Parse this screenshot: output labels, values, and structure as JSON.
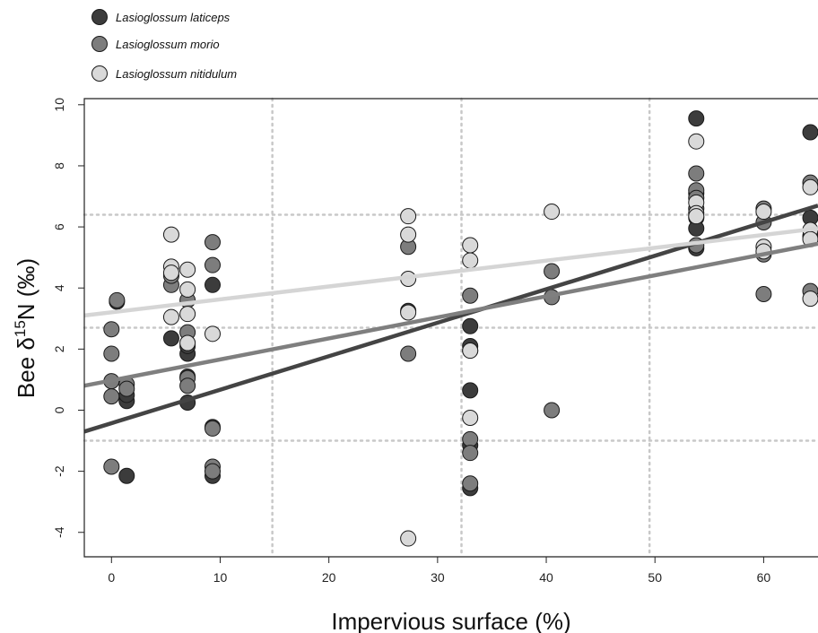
{
  "chart_data": {
    "type": "scatter",
    "xlabel": "Impervious surface (%)",
    "ylabel_main": "Bee δ",
    "ylabel_sup": "15",
    "ylabel_rest": "N (‰)",
    "xlim": [
      -2.5,
      65
    ],
    "ylim": [
      -4.8,
      10.2
    ],
    "x_ticks": [
      0,
      10,
      20,
      30,
      40,
      50,
      60
    ],
    "x_tick_labels": [
      "0",
      "10",
      "20",
      "30",
      "40",
      "50",
      "60"
    ],
    "y_ticks": [
      -4,
      -2,
      0,
      2,
      4,
      6,
      8,
      10
    ],
    "y_tick_labels": [
      "-4",
      "-2",
      "0",
      "2",
      "4",
      "6",
      "8",
      "10"
    ],
    "grid": "dotted reference lines",
    "ref_vlines": [
      14.8,
      32.2,
      49.5
    ],
    "ref_hlines": [
      -1.0,
      2.7,
      6.4
    ],
    "legend_position": "top-left",
    "series": [
      {
        "name": "Lasioglossum laticeps",
        "color": "#3c3c3c",
        "line_color": "#444444",
        "trend": [
          [
            -2.5,
            -0.7
          ],
          [
            65,
            6.7
          ]
        ],
        "points": [
          [
            0.5,
            3.55
          ],
          [
            1.4,
            0.3
          ],
          [
            1.4,
            0.5
          ],
          [
            1.4,
            -2.15
          ],
          [
            5.5,
            2.35
          ],
          [
            7.0,
            1.85
          ],
          [
            7.0,
            1.1
          ],
          [
            7.0,
            0.25
          ],
          [
            7.0,
            2.1
          ],
          [
            9.3,
            4.1
          ],
          [
            9.3,
            -0.55
          ],
          [
            9.3,
            -2.15
          ],
          [
            27.3,
            3.25
          ],
          [
            33.0,
            2.75
          ],
          [
            33.0,
            2.1
          ],
          [
            33.0,
            1.95
          ],
          [
            33.0,
            0.65
          ],
          [
            33.0,
            -2.55
          ],
          [
            33.0,
            -1.15
          ],
          [
            53.8,
            9.55
          ],
          [
            53.8,
            7.1
          ],
          [
            53.8,
            6.3
          ],
          [
            53.8,
            5.95
          ],
          [
            53.8,
            5.3
          ],
          [
            64.3,
            9.1
          ],
          [
            64.3,
            6.3
          ],
          [
            64.3,
            5.7
          ]
        ]
      },
      {
        "name": "Lasioglossum morio",
        "color": "#7d7d7d",
        "line_color": "#7f7f7f",
        "trend": [
          [
            -2.5,
            0.8
          ],
          [
            65,
            5.45
          ]
        ],
        "points": [
          [
            0.0,
            2.65
          ],
          [
            0.0,
            1.85
          ],
          [
            0.0,
            0.95
          ],
          [
            0.0,
            0.45
          ],
          [
            0.0,
            -1.85
          ],
          [
            0.5,
            3.6
          ],
          [
            1.4,
            0.85
          ],
          [
            1.4,
            0.7
          ],
          [
            5.5,
            4.1
          ],
          [
            5.5,
            4.4
          ],
          [
            7.0,
            3.6
          ],
          [
            7.0,
            2.55
          ],
          [
            7.0,
            1.05
          ],
          [
            7.0,
            0.8
          ],
          [
            9.3,
            5.5
          ],
          [
            9.3,
            4.75
          ],
          [
            9.3,
            -0.6
          ],
          [
            9.3,
            -1.85
          ],
          [
            9.3,
            -2.0
          ],
          [
            27.3,
            5.35
          ],
          [
            27.3,
            1.85
          ],
          [
            33.0,
            3.75
          ],
          [
            33.0,
            -0.95
          ],
          [
            33.0,
            -1.4
          ],
          [
            33.0,
            -2.4
          ],
          [
            40.5,
            4.55
          ],
          [
            40.5,
            3.7
          ],
          [
            40.5,
            0.0
          ],
          [
            53.8,
            7.75
          ],
          [
            53.8,
            7.2
          ],
          [
            53.8,
            6.95
          ],
          [
            53.8,
            6.6
          ],
          [
            53.8,
            5.4
          ],
          [
            60.0,
            6.6
          ],
          [
            60.0,
            6.15
          ],
          [
            60.0,
            3.8
          ],
          [
            60.0,
            5.1
          ],
          [
            64.3,
            7.45
          ],
          [
            64.3,
            3.9
          ]
        ]
      },
      {
        "name": "Lasioglossum nitidulum",
        "color": "#d9d9d9",
        "line_color": "#d5d5d5",
        "trend": [
          [
            -2.5,
            3.1
          ],
          [
            65,
            5.95
          ]
        ],
        "points": [
          [
            5.5,
            5.75
          ],
          [
            5.5,
            4.7
          ],
          [
            5.5,
            4.5
          ],
          [
            5.5,
            3.05
          ],
          [
            7.0,
            4.6
          ],
          [
            7.0,
            3.95
          ],
          [
            7.0,
            3.15
          ],
          [
            7.0,
            2.2
          ],
          [
            9.3,
            2.5
          ],
          [
            27.3,
            6.35
          ],
          [
            27.3,
            5.75
          ],
          [
            27.3,
            4.3
          ],
          [
            27.3,
            3.2
          ],
          [
            27.3,
            -4.2
          ],
          [
            33.0,
            5.4
          ],
          [
            33.0,
            4.9
          ],
          [
            33.0,
            1.95
          ],
          [
            33.0,
            -0.25
          ],
          [
            40.5,
            6.5
          ],
          [
            53.8,
            8.8
          ],
          [
            53.8,
            6.8
          ],
          [
            53.8,
            6.45
          ],
          [
            53.8,
            6.35
          ],
          [
            60.0,
            6.5
          ],
          [
            60.0,
            5.35
          ],
          [
            60.0,
            5.2
          ],
          [
            64.3,
            7.3
          ],
          [
            64.3,
            5.9
          ],
          [
            64.3,
            5.6
          ],
          [
            64.3,
            3.65
          ]
        ]
      }
    ]
  }
}
